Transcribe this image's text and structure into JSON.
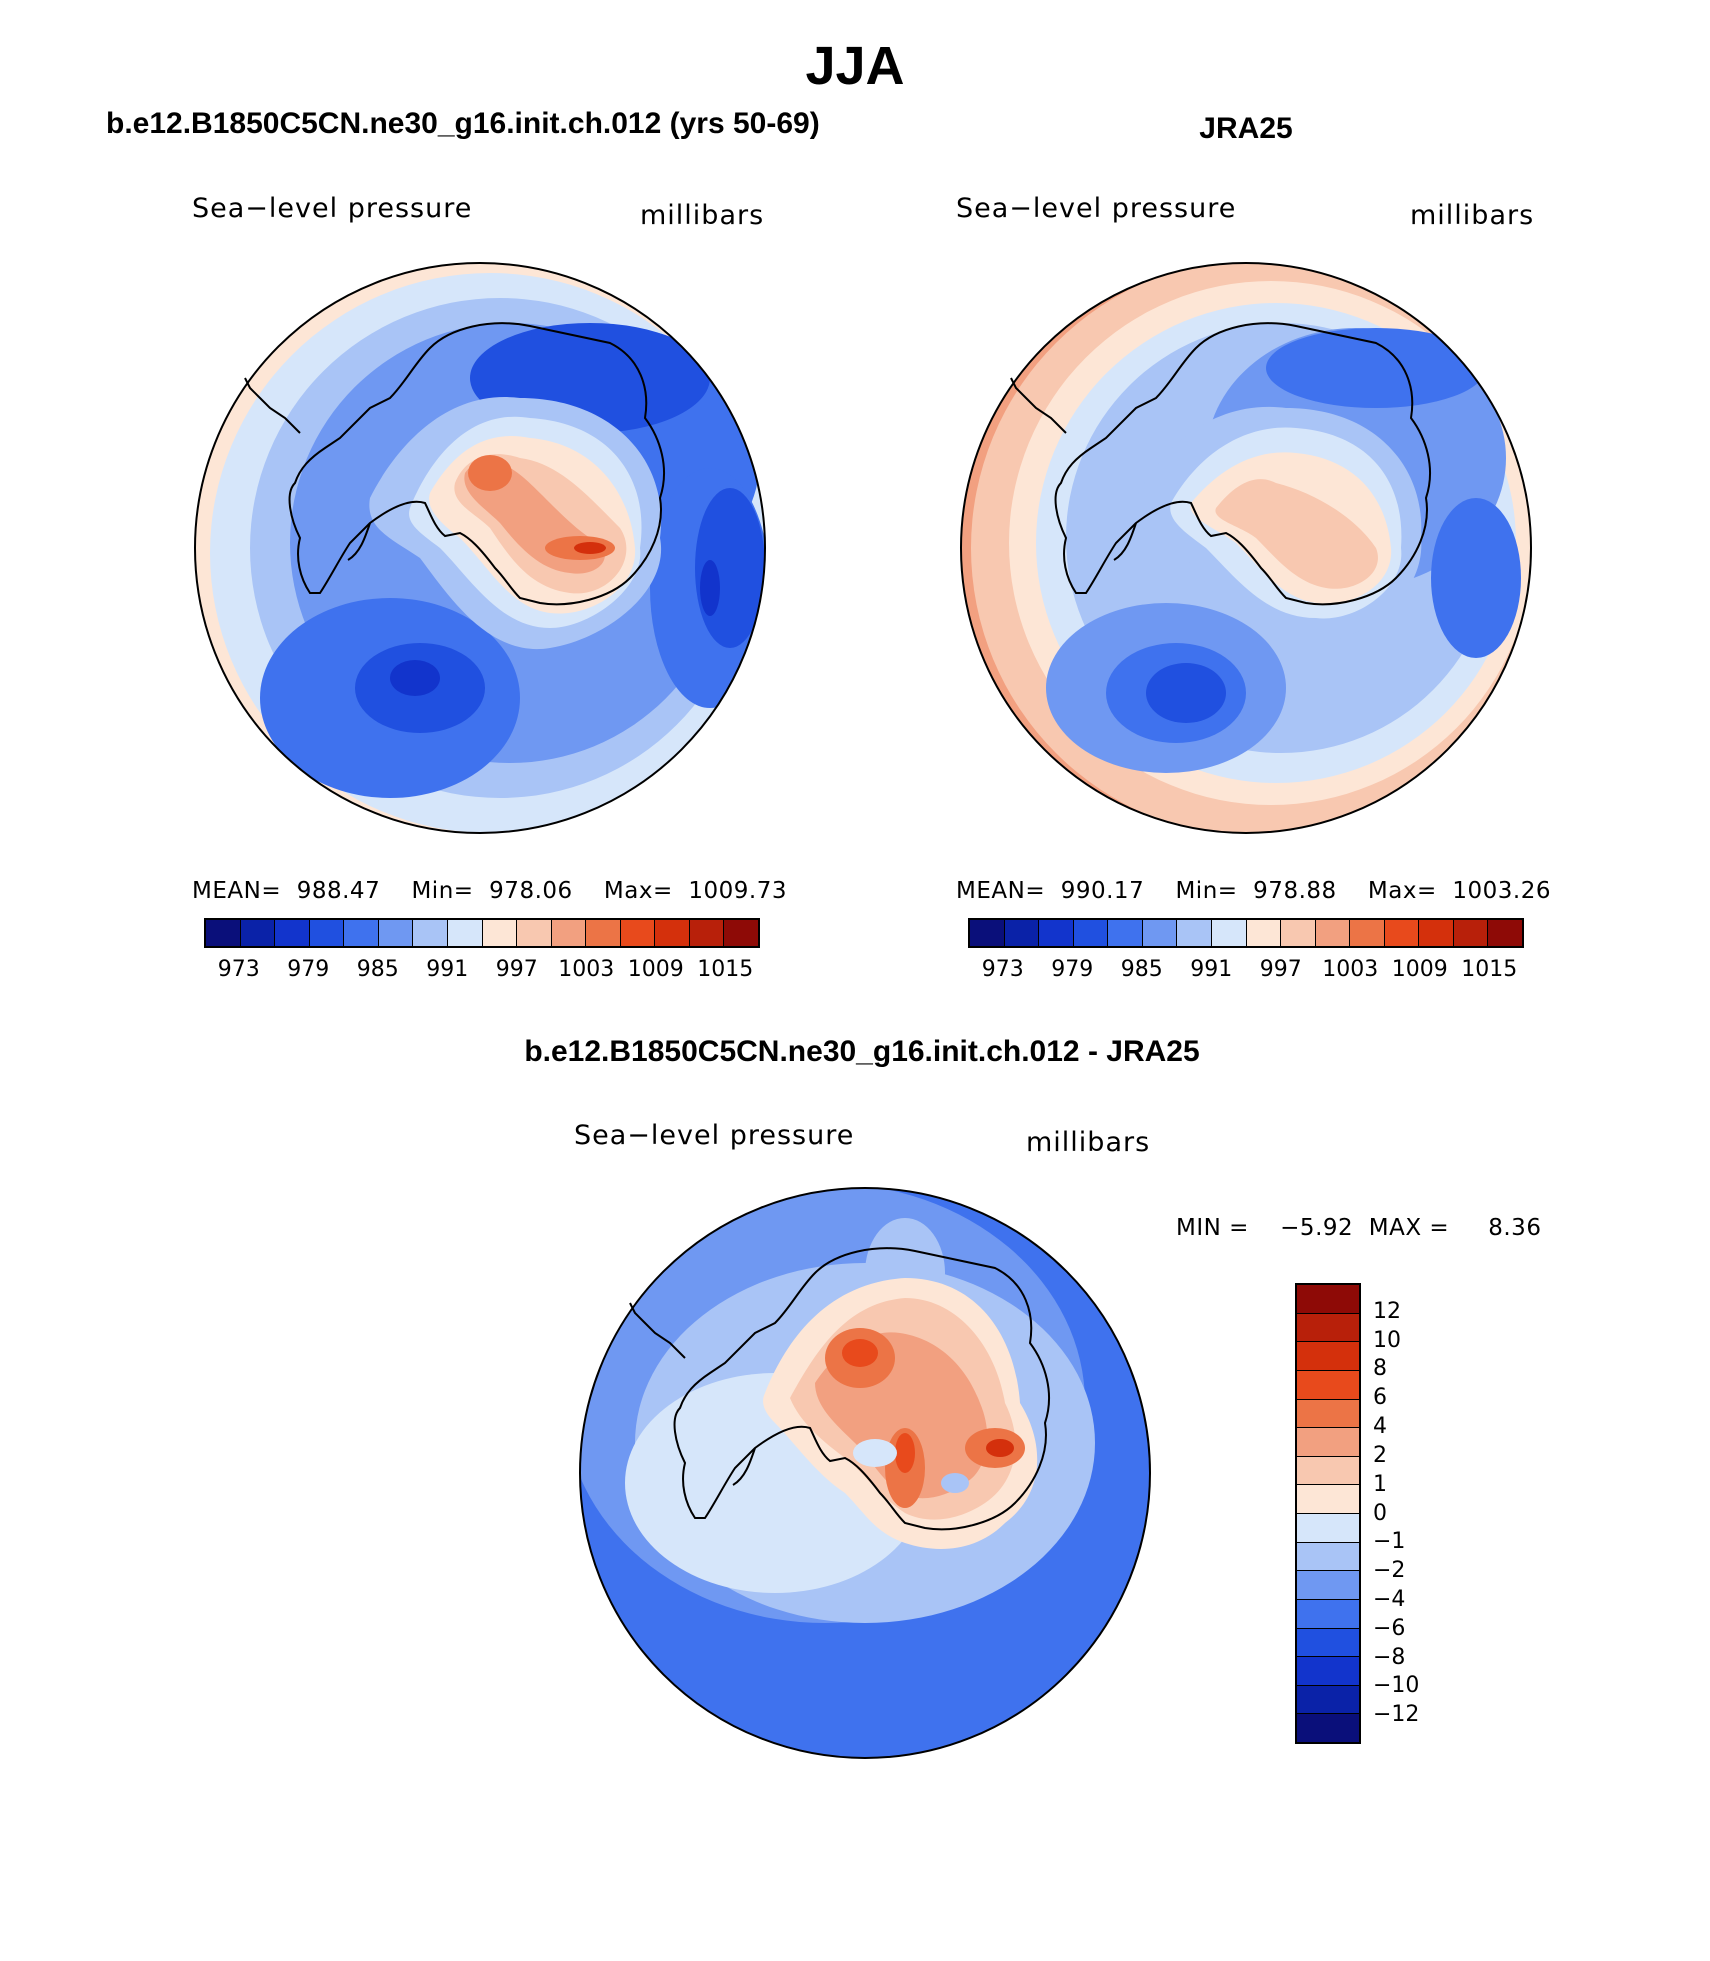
{
  "title": "JJA",
  "panels": [
    {
      "title": "b.e12.B1850C5CN.ne30_g16.init.ch.012 (yrs 50-69)",
      "variable": "Sea−level pressure",
      "units": "millibars",
      "stats": {
        "mean_label": "MEAN=",
        "mean": "988.47",
        "min_label": "Min=",
        "min": "978.06",
        "max_label": "Max=",
        "max": "1009.73"
      },
      "colorbar_ticks": [
        "973",
        "979",
        "985",
        "991",
        "997",
        "1003",
        "1009",
        "1015"
      ]
    },
    {
      "title": "JRA25",
      "variable": "Sea−level pressure",
      "units": "millibars",
      "stats": {
        "mean_label": "MEAN=",
        "mean": "990.17",
        "min_label": "Min=",
        "min": "978.88",
        "max_label": "Max=",
        "max": "1003.26"
      },
      "colorbar_ticks": [
        "973",
        "979",
        "985",
        "991",
        "997",
        "1003",
        "1009",
        "1015"
      ]
    }
  ],
  "difference": {
    "title": "b.e12.B1850C5CN.ne30_g16.init.ch.012 - JRA25",
    "variable": "Sea−level pressure",
    "units": "millibars",
    "minmax_text": "MIN =    −5.92  MAX =     8.36",
    "colorbar_ticks": [
      "12",
      "10",
      "8",
      "6",
      "4",
      "2",
      "1",
      "0",
      "−1",
      "−2",
      "−4",
      "−6",
      "−8",
      "−10",
      "−12"
    ]
  },
  "colors": {
    "abs_scale": [
      "#0a0f7a",
      "#0a22a8",
      "#1234cc",
      "#2050e0",
      "#3f72ee",
      "#6f98f2",
      "#a9c4f6",
      "#d6e6fa",
      "#fde6d6",
      "#f8c8b0",
      "#f2a080",
      "#ec7446",
      "#e84a1c",
      "#d4300c",
      "#b8200a",
      "#8e0a06"
    ],
    "diff_scale": [
      "#8e0a06",
      "#b8200a",
      "#d4300c",
      "#e84a1c",
      "#ec7446",
      "#f2a080",
      "#f8c8b0",
      "#fde6d6",
      "#d6e6fa",
      "#a9c4f6",
      "#6f98f2",
      "#3f72ee",
      "#2050e0",
      "#1234cc",
      "#0a22a8",
      "#0a0f7a"
    ]
  }
}
